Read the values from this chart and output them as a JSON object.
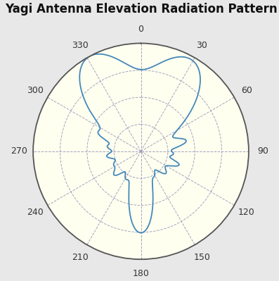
{
  "title": "Yagi Antenna Elevation Radiation Pattern",
  "title_fontsize": 12,
  "background_color": "#e8e8e8",
  "polar_bg_color": "#fffff0",
  "line_color": "#4488bb",
  "line_width": 1.3,
  "angle_labels": [
    "0",
    "30",
    "60",
    "90",
    "120",
    "150",
    "180",
    "210",
    "240",
    "270",
    "300",
    "330"
  ],
  "dashed_color": "#9999bb",
  "r_max": 1.0,
  "n_points": 3600
}
